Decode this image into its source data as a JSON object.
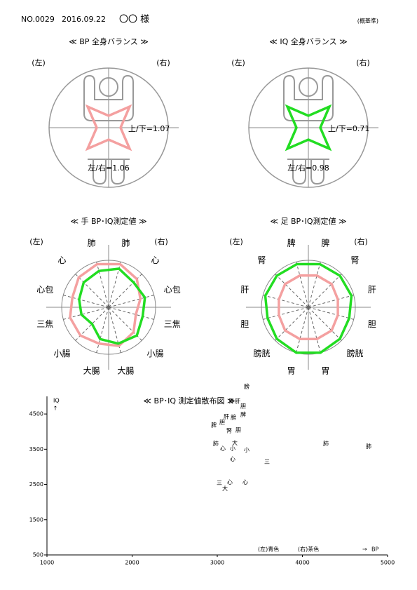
{
  "header": {
    "number": "NO.0029",
    "date": "2016.09.22",
    "name": "〇〇 様",
    "note": "(概基準)"
  },
  "chart_data": [
    {
      "type": "balance",
      "title": "≪ BP 全身バランス ≫",
      "left_label": "(左)",
      "right_label": "(右)",
      "ratio_labels": [
        "上/下=1.07",
        "左/右=1.06"
      ],
      "color": "#f4a0a0"
    },
    {
      "type": "balance",
      "title": "≪ IQ 全身バランス ≫",
      "left_label": "(左)",
      "right_label": "(右)",
      "ratio_labels": [
        "上/下=0.71",
        "左/右=0.98"
      ],
      "color": "#22dd22"
    },
    {
      "type": "radar",
      "title": "≪ 手 BP･IQ測定値 ≫",
      "left_label": "(左)",
      "right_label": "(右)",
      "categories": [
        "肺",
        "心",
        "心包",
        "三焦",
        "小腸",
        "大腸",
        "大腸",
        "小腸",
        "三焦",
        "心包",
        "心",
        "肺"
      ],
      "category_colors": [
        "#1a1a99",
        "#1a1a99",
        "#1a1a99",
        "#8b1a1a",
        "#8b1a1a",
        "#8b1a1a",
        "#8b1a1a",
        "#8b1a1a",
        "#8b1a1a",
        "#1a1a99",
        "#1a1a99",
        "#1a1a99"
      ],
      "rlim": [
        0,
        1
      ],
      "series": [
        {
          "color": "#f4a0a0",
          "values": [
            0.95,
            0.85,
            0.7,
            0.6,
            0.75,
            0.85,
            0.8,
            0.85,
            0.85,
            0.8,
            0.9,
            0.95
          ]
        },
        {
          "color": "#22dd22",
          "values": [
            0.85,
            0.75,
            0.8,
            0.75,
            0.85,
            0.8,
            0.7,
            0.5,
            0.6,
            0.65,
            0.75,
            0.8
          ]
        }
      ]
    },
    {
      "type": "radar",
      "title": "≪ 足 BP･IQ測定値 ≫",
      "left_label": "(左)",
      "right_label": "(右)",
      "categories": [
        "脾",
        "腎",
        "肝",
        "胆",
        "膀胱",
        "胃",
        "胃",
        "膀胱",
        "胆",
        "肝",
        "腎",
        "脾"
      ],
      "category_colors": [
        "#1a1a99",
        "#1a1a99",
        "#1a1a99",
        "#8b1a1a",
        "#8b1a1a",
        "#8b1a1a",
        "#8b1a1a",
        "#8b1a1a",
        "#8b1a1a",
        "#1a1a99",
        "#1a1a99",
        "#1a1a99"
      ],
      "rlim": [
        0,
        1
      ],
      "series": [
        {
          "color": "#f4a0a0",
          "values": [
            0.7,
            0.7,
            0.65,
            0.65,
            0.7,
            0.7,
            0.7,
            0.7,
            0.65,
            0.65,
            0.7,
            0.7
          ]
        },
        {
          "color": "#22dd22",
          "values": [
            0.95,
            0.95,
            0.95,
            0.9,
            0.95,
            1.0,
            1.0,
            0.95,
            0.9,
            0.95,
            0.95,
            0.95
          ]
        }
      ]
    },
    {
      "type": "scatter",
      "title": "≪ BP･IQ 測定値散布図 ≫",
      "x_label": "BP",
      "y_label": "IQ",
      "xlim": [
        1000,
        5000
      ],
      "ylim": [
        500,
        5000
      ],
      "xticks": [
        1000,
        2000,
        3000,
        4000,
        5000
      ],
      "yticks": [
        500,
        1500,
        2500,
        3500,
        4500
      ],
      "series": [
        {
          "name": "(左)青色",
          "color": "#1a1a99",
          "labels": [
            "膀",
            "胃",
            "肝",
            "脾",
            "腎",
            "胆",
            "小",
            "三",
            "肺",
            "心",
            "大",
            "心"
          ],
          "x": [
            3346,
            3165,
            3240,
            3305,
            3140,
            3247,
            3346,
            3584,
            4778,
            3148,
            3091,
            3329
          ],
          "values": [
            5280,
            4860,
            4860,
            4480,
            4020,
            4040,
            3480,
            3140,
            3580,
            2560,
            2380,
            2560
          ]
        },
        {
          "name": "(右)茶色",
          "color": "#8b1a1a",
          "labels": [
            "胆",
            "肝",
            "膀",
            "胆",
            "脾",
            "肺",
            "心",
            "大",
            "小",
            "心",
            "肺",
            "三"
          ],
          "x": [
            3305,
            3107,
            3190,
            3058,
            2960,
            2983,
            3066,
            3206,
            3181,
            3181,
            4276,
            3025
          ],
          "values": [
            4720,
            4420,
            4400,
            4260,
            4180,
            3660,
            3520,
            3680,
            3520,
            3220,
            3660,
            2540
          ]
        }
      ]
    }
  ]
}
